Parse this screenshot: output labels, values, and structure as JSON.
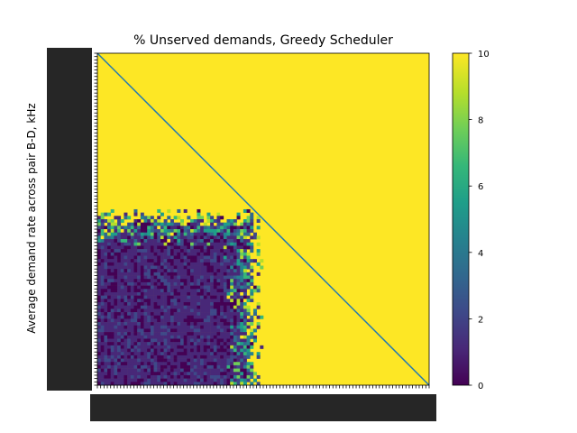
{
  "chart_data": {
    "type": "heatmap",
    "title": "% Unserved demands, Greedy Scheduler",
    "xlabel": "",
    "ylabel": "Average demand rate across pair B-D, kHz",
    "x_tick_labels_legible": false,
    "y_tick_labels_legible": false,
    "grid": false,
    "colormap": "viridis",
    "color_range": [
      0,
      10
    ],
    "colorbar": {
      "ticks": [
        0,
        2,
        4,
        6,
        8,
        10
      ],
      "tick_labels": [
        "0",
        "2",
        "4",
        "6",
        "8",
        "10"
      ]
    },
    "grid_size": [
      100,
      100
    ],
    "region_description_values": {
      "saturated_value": 10,
      "low_region_value_range": [
        0,
        2
      ],
      "low_region_col_extent_frac": 0.45,
      "low_region_row_extent_frac": 0.48
    },
    "diagonal_line": {
      "color": "#1f77b4",
      "from": "top-left",
      "to": "bottom-right"
    }
  },
  "colors": {
    "viridis": [
      "#440154",
      "#482878",
      "#3e4989",
      "#31688e",
      "#26828e",
      "#1f9e89",
      "#35b779",
      "#6ece58",
      "#b5de2b",
      "#fde725"
    ],
    "diagonal": "#1f77b4"
  }
}
